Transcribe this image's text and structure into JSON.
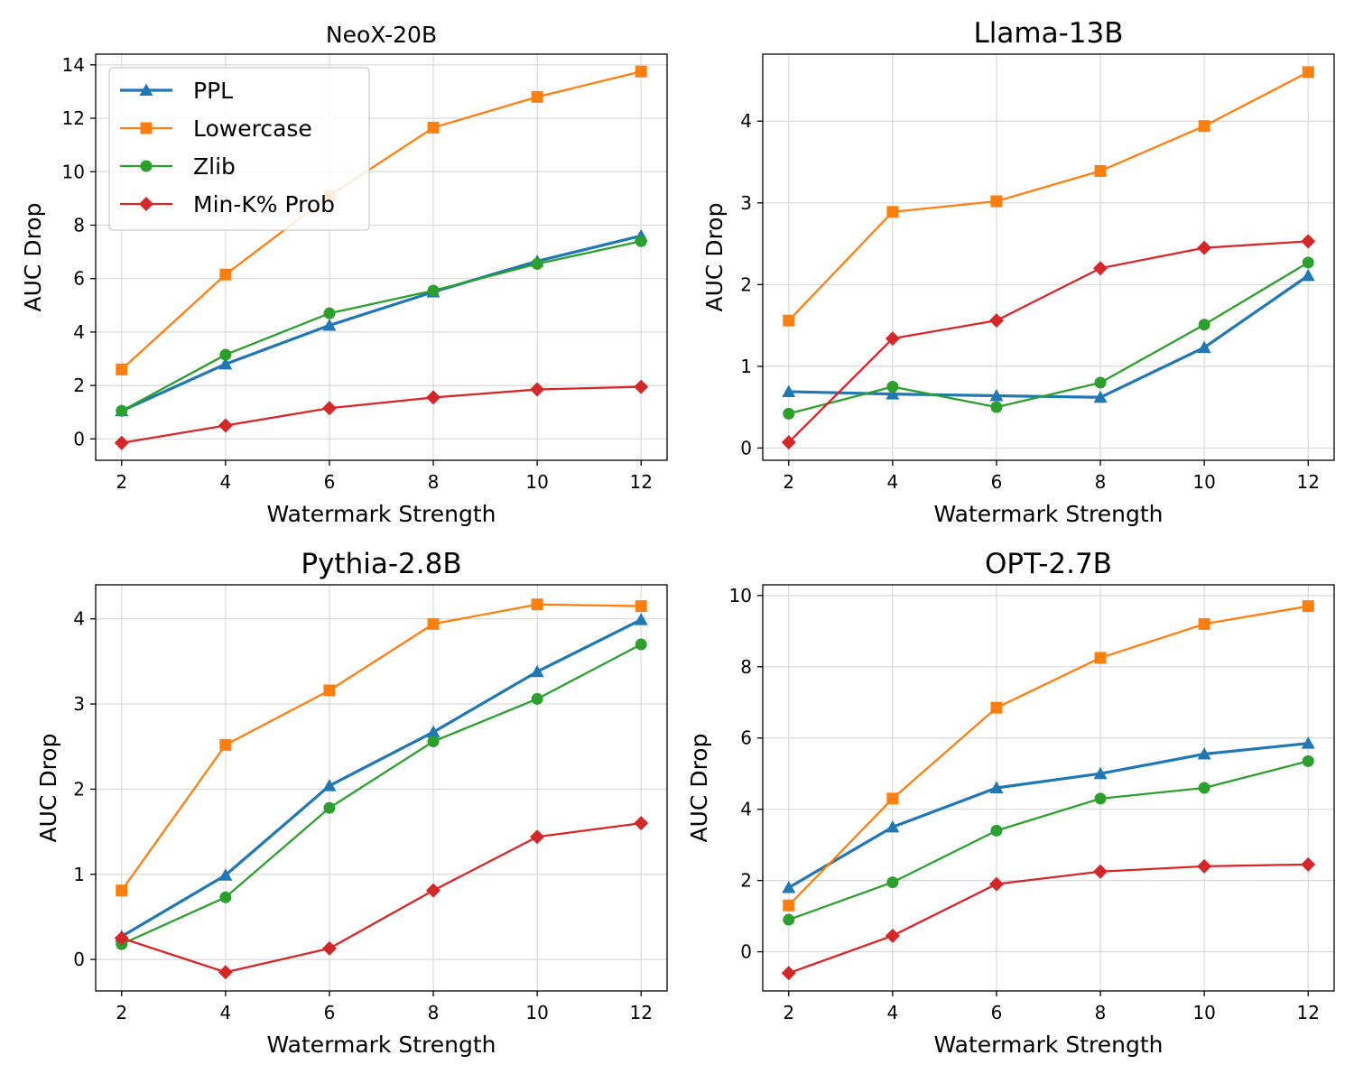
{
  "colors": {
    "PPL": "#1f77b4",
    "Lowercase": "#ff7f0e",
    "Zlib": "#2ca02c",
    "Min-K% Prob": "#d62728"
  },
  "chart_data": [
    {
      "type": "line",
      "title": "NeoX-20B",
      "xlabel": "Watermark Strength",
      "ylabel": "AUC Drop",
      "x": [
        2,
        4,
        6,
        8,
        10,
        12
      ],
      "xlim": [
        1.5,
        12.5
      ],
      "ylim": [
        -0.8,
        14.4
      ],
      "xticks": [
        2,
        4,
        6,
        8,
        10,
        12
      ],
      "yticks": [
        0,
        2,
        4,
        6,
        8,
        10,
        12,
        14
      ],
      "grid": true,
      "legend": "upper-left",
      "series": [
        {
          "name": "PPL",
          "marker": "triangle",
          "values": [
            1.05,
            2.8,
            4.25,
            5.5,
            6.65,
            7.6
          ]
        },
        {
          "name": "Lowercase",
          "marker": "square",
          "values": [
            2.6,
            6.15,
            9.1,
            11.65,
            12.8,
            13.75
          ]
        },
        {
          "name": "Zlib",
          "marker": "circle",
          "values": [
            1.05,
            3.15,
            4.7,
            5.55,
            6.55,
            7.4
          ]
        },
        {
          "name": "Min-K% Prob",
          "marker": "diamond",
          "values": [
            -0.15,
            0.5,
            1.15,
            1.55,
            1.85,
            1.95
          ]
        }
      ]
    },
    {
      "type": "line",
      "title": "Llama-13B",
      "xlabel": "Watermark Strength",
      "ylabel": "AUC Drop",
      "x": [
        2,
        4,
        6,
        8,
        10,
        12
      ],
      "xlim": [
        1.5,
        12.5
      ],
      "ylim": [
        -0.15,
        4.82
      ],
      "xticks": [
        2,
        4,
        6,
        8,
        10,
        12
      ],
      "yticks": [
        0,
        1,
        2,
        3,
        4
      ],
      "grid": true,
      "series": [
        {
          "name": "PPL",
          "marker": "triangle",
          "values": [
            0.69,
            0.66,
            0.64,
            0.62,
            1.23,
            2.11
          ]
        },
        {
          "name": "Lowercase",
          "marker": "square",
          "values": [
            1.56,
            2.89,
            3.02,
            3.39,
            3.94,
            4.6
          ]
        },
        {
          "name": "Zlib",
          "marker": "circle",
          "values": [
            0.42,
            0.75,
            0.5,
            0.8,
            1.51,
            2.27
          ]
        },
        {
          "name": "Min-K% Prob",
          "marker": "diamond",
          "values": [
            0.07,
            1.34,
            1.56,
            2.2,
            2.45,
            2.53
          ]
        }
      ]
    },
    {
      "type": "line",
      "title": "Pythia-2.8B",
      "xlabel": "Watermark Strength",
      "ylabel": "AUC Drop",
      "x": [
        2,
        4,
        6,
        8,
        10,
        12
      ],
      "xlim": [
        1.5,
        12.5
      ],
      "ylim": [
        -0.37,
        4.4
      ],
      "xticks": [
        2,
        4,
        6,
        8,
        10,
        12
      ],
      "yticks": [
        0,
        1,
        2,
        3,
        4
      ],
      "grid": true,
      "series": [
        {
          "name": "PPL",
          "marker": "triangle",
          "values": [
            0.27,
            0.99,
            2.04,
            2.67,
            3.38,
            3.99
          ]
        },
        {
          "name": "Lowercase",
          "marker": "square",
          "values": [
            0.81,
            2.52,
            3.16,
            3.94,
            4.17,
            4.15
          ]
        },
        {
          "name": "Zlib",
          "marker": "circle",
          "values": [
            0.18,
            0.73,
            1.78,
            2.56,
            3.06,
            3.7
          ]
        },
        {
          "name": "Min-K% Prob",
          "marker": "diamond",
          "values": [
            0.25,
            -0.15,
            0.13,
            0.81,
            1.44,
            1.6
          ]
        }
      ]
    },
    {
      "type": "line",
      "title": "OPT-2.7B",
      "xlabel": "Watermark Strength",
      "ylabel": "AUC Drop",
      "x": [
        2,
        4,
        6,
        8,
        10,
        12
      ],
      "xlim": [
        1.5,
        12.5
      ],
      "ylim": [
        -1.1,
        10.3
      ],
      "xticks": [
        2,
        4,
        6,
        8,
        10,
        12
      ],
      "yticks": [
        0,
        2,
        4,
        6,
        8,
        10
      ],
      "grid": true,
      "series": [
        {
          "name": "PPL",
          "marker": "triangle",
          "values": [
            1.8,
            3.5,
            4.6,
            5.0,
            5.55,
            5.85
          ]
        },
        {
          "name": "Lowercase",
          "marker": "square",
          "values": [
            1.3,
            4.3,
            6.85,
            8.25,
            9.2,
            9.7
          ]
        },
        {
          "name": "Zlib",
          "marker": "circle",
          "values": [
            0.9,
            1.95,
            3.4,
            4.3,
            4.6,
            5.35
          ]
        },
        {
          "name": "Min-K% Prob",
          "marker": "diamond",
          "values": [
            -0.6,
            0.45,
            1.9,
            2.25,
            2.4,
            2.45
          ]
        }
      ]
    }
  ]
}
